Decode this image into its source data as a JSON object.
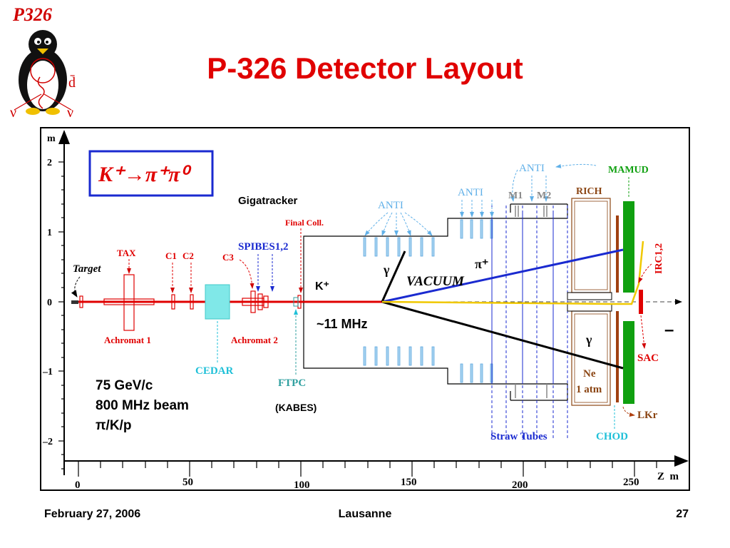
{
  "logo": {
    "title": "P326",
    "s_bar": "s̄",
    "d_bar": "d̄",
    "nu_left": "ν",
    "nu_right": "ν"
  },
  "page_title": "P-326 Detector Layout",
  "diagram": {
    "decay": "K⁺→π⁺π⁰",
    "axis": {
      "y_unit": "m",
      "y_ticks": [
        "2",
        "1",
        "0",
        "–1",
        "–2"
      ],
      "x_ticks": [
        "0",
        "50",
        "100",
        "150",
        "200",
        "250"
      ],
      "x_unit": "Z  m"
    },
    "labels": {
      "target": "Target",
      "tax": "TAX",
      "c1": "C1",
      "c2": "C2",
      "c3": "C3",
      "achromat1": "Achromat 1",
      "achromat2": "Achromat 2",
      "cedar": "CEDAR",
      "gigatracker": "Gigatracker",
      "final_coll": "Final Coll.",
      "spibes": "SPIBES1,2",
      "ftpc": "FTPC",
      "kabes": "(KABES)",
      "anti_1": "ANTI",
      "anti_2": "ANTI",
      "anti_3": "ANTI",
      "m1": "M1",
      "m2": "M2",
      "rich": "RICH",
      "mamud": "MAMUD",
      "irc": "IRC1,2",
      "sac": "SAC",
      "lkr": "LKr",
      "chod": "CHOD",
      "straw_tubes": "Straw Tubes",
      "ne": "Ne",
      "atm": "1 atm",
      "vacuum": "VACUUM",
      "kplus": "K⁺",
      "pi_plus": "π⁺",
      "gamma1": "γ",
      "gamma2": "γ",
      "mhz": "~11 MHz",
      "minus": "–",
      "beam1": "75 GeV/c",
      "beam2": "800 MHz beam",
      "beam3": "π/K/p"
    }
  },
  "footer": {
    "date": "February 27, 2006",
    "place": "Lausanne",
    "page": "27"
  }
}
